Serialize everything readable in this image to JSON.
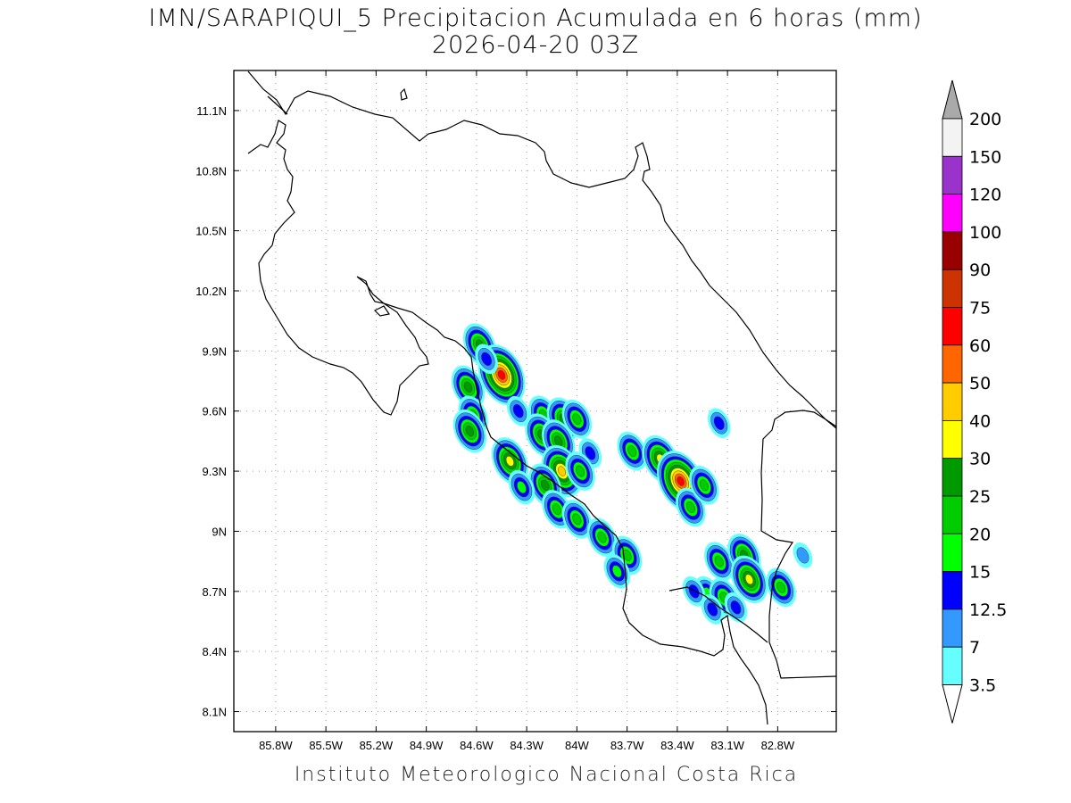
{
  "title": {
    "line1": "IMN/SARAPIQUI_5 Precipitacion Acumulada en 6 horas (mm)",
    "line2": "2026-04-20 03Z"
  },
  "credit": "Instituto Meteorologico Nacional Costa Rica",
  "map": {
    "lon_range": [
      -86.05,
      -82.45
    ],
    "lat_range": [
      8.0,
      11.3
    ],
    "lon_ticks": [
      {
        "v": -85.8,
        "label": "85.8W"
      },
      {
        "v": -85.5,
        "label": "85.5W"
      },
      {
        "v": -85.2,
        "label": "85.2W"
      },
      {
        "v": -84.9,
        "label": "84.9W"
      },
      {
        "v": -84.6,
        "label": "84.6W"
      },
      {
        "v": -84.3,
        "label": "84.3W"
      },
      {
        "v": -84.0,
        "label": "84W"
      },
      {
        "v": -83.7,
        "label": "83.7W"
      },
      {
        "v": -83.4,
        "label": "83.4W"
      },
      {
        "v": -83.1,
        "label": "83.1W"
      },
      {
        "v": -82.8,
        "label": "82.8W"
      }
    ],
    "lat_ticks": [
      {
        "v": 11.1,
        "label": "11.1N"
      },
      {
        "v": 10.8,
        "label": "10.8N"
      },
      {
        "v": 10.5,
        "label": "10.5N"
      },
      {
        "v": 10.2,
        "label": "10.2N"
      },
      {
        "v": 9.9,
        "label": "9.9N"
      },
      {
        "v": 9.6,
        "label": "9.6N"
      },
      {
        "v": 9.3,
        "label": "9.3N"
      },
      {
        "v": 9.0,
        "label": "9N"
      },
      {
        "v": 8.7,
        "label": "8.7N"
      },
      {
        "v": 8.4,
        "label": "8.4N"
      },
      {
        "v": 8.1,
        "label": "8.1N"
      }
    ],
    "grid": true,
    "precip_cells": [
      {
        "lon": -84.58,
        "lat": 9.93,
        "val": 25
      },
      {
        "lon": -84.45,
        "lat": 9.78,
        "val": 70
      },
      {
        "lon": -84.65,
        "lat": 9.72,
        "val": 25
      },
      {
        "lon": -84.62,
        "lat": 9.58,
        "val": 20
      },
      {
        "lon": -84.64,
        "lat": 9.5,
        "val": 25
      },
      {
        "lon": -84.54,
        "lat": 9.86,
        "val": 12.5
      },
      {
        "lon": -84.35,
        "lat": 9.6,
        "val": 12.5
      },
      {
        "lon": -84.2,
        "lat": 9.58,
        "val": 20
      },
      {
        "lon": -84.21,
        "lat": 9.48,
        "val": 25
      },
      {
        "lon": -84.08,
        "lat": 9.56,
        "val": 25
      },
      {
        "lon": -84.0,
        "lat": 9.56,
        "val": 20
      },
      {
        "lon": -84.11,
        "lat": 9.45,
        "val": 25
      },
      {
        "lon": -84.4,
        "lat": 9.35,
        "val": 30
      },
      {
        "lon": -84.09,
        "lat": 9.3,
        "val": 45
      },
      {
        "lon": -84.19,
        "lat": 9.23,
        "val": 25
      },
      {
        "lon": -84.33,
        "lat": 9.22,
        "val": 15
      },
      {
        "lon": -84.12,
        "lat": 9.11,
        "val": 20
      },
      {
        "lon": -84.0,
        "lat": 9.06,
        "val": 20
      },
      {
        "lon": -83.92,
        "lat": 9.39,
        "val": 12.5
      },
      {
        "lon": -83.98,
        "lat": 9.3,
        "val": 20
      },
      {
        "lon": -83.67,
        "lat": 9.4,
        "val": 20
      },
      {
        "lon": -83.5,
        "lat": 9.36,
        "val": 30
      },
      {
        "lon": -83.38,
        "lat": 9.25,
        "val": 65
      },
      {
        "lon": -83.32,
        "lat": 9.12,
        "val": 20
      },
      {
        "lon": -83.24,
        "lat": 9.23,
        "val": 20
      },
      {
        "lon": -83.15,
        "lat": 9.54,
        "val": 12.5
      },
      {
        "lon": -83.85,
        "lat": 8.97,
        "val": 20
      },
      {
        "lon": -83.7,
        "lat": 8.88,
        "val": 20
      },
      {
        "lon": -83.76,
        "lat": 8.8,
        "val": 15
      },
      {
        "lon": -83.15,
        "lat": 8.85,
        "val": 20
      },
      {
        "lon": -83.0,
        "lat": 8.88,
        "val": 25
      },
      {
        "lon": -82.97,
        "lat": 8.76,
        "val": 30
      },
      {
        "lon": -83.22,
        "lat": 8.69,
        "val": 15
      },
      {
        "lon": -83.3,
        "lat": 8.7,
        "val": 12.5
      },
      {
        "lon": -83.12,
        "lat": 8.67,
        "val": 20
      },
      {
        "lon": -82.78,
        "lat": 8.72,
        "val": 20
      },
      {
        "lon": -83.05,
        "lat": 8.62,
        "val": 12.5
      },
      {
        "lon": -83.19,
        "lat": 8.61,
        "val": 12.5
      },
      {
        "lon": -82.65,
        "lat": 8.88,
        "val": 7
      }
    ]
  },
  "colorbar": {
    "levels": [
      "200",
      "150",
      "120",
      "100",
      "90",
      "75",
      "60",
      "50",
      "40",
      "30",
      "25",
      "20",
      "15",
      "12.5",
      "7",
      "3.5"
    ],
    "colors": [
      "#f3f3f3",
      "#9933cc",
      "#ff00ff",
      "#990000",
      "#cc3300",
      "#ff0000",
      "#ff6600",
      "#ffcc00",
      "#ffff00",
      "#009900",
      "#00cc00",
      "#00ff00",
      "#0000ff",
      "#3399ff",
      "#66ffff"
    ],
    "over_color": "#aaaaaa",
    "under_color": "#ffffff"
  }
}
